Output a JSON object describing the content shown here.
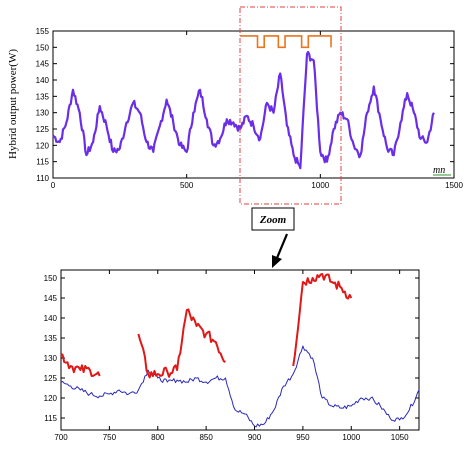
{
  "chart_data": [
    {
      "type": "line",
      "ylabel": "Hybrid output power(W)",
      "x_unit": "mn",
      "xlim": [
        0,
        1500
      ],
      "ylim": [
        110,
        155
      ],
      "xticks": [
        0,
        500,
        1000,
        1500
      ],
      "yticks": [
        110,
        115,
        120,
        125,
        130,
        135,
        140,
        145,
        150,
        155
      ],
      "grid": false,
      "annotation": {
        "type": "zoom-region",
        "x_range": [
          700,
          1070
        ],
        "label": "Zoom"
      },
      "colors": {
        "power": "#6a2ee8",
        "switch_signal": "#e8761e",
        "zoom_box": "#e04040",
        "unit": "#2a9a2a"
      },
      "series": [
        {
          "color": "#6a2ee8",
          "x": [
            0,
            25,
            50,
            75,
            100,
            125,
            150,
            175,
            200,
            225,
            250,
            275,
            300,
            325,
            350,
            375,
            400,
            425,
            450,
            475,
            500,
            525,
            550,
            575,
            600,
            625,
            650,
            675,
            700,
            725,
            750,
            775,
            800,
            825,
            850,
            875,
            900,
            925,
            950,
            975,
            1000,
            1025,
            1050,
            1075,
            1100,
            1125,
            1150,
            1175,
            1200,
            1225,
            1250,
            1275,
            1300,
            1325,
            1350,
            1375,
            1400,
            1425
          ],
          "y": [
            123,
            121,
            127,
            137,
            130,
            117,
            121,
            132,
            126,
            118,
            119,
            127,
            133,
            130,
            121,
            118,
            126,
            134,
            127,
            120,
            118,
            130,
            137,
            128,
            120,
            122,
            128,
            127,
            125,
            129,
            126,
            122,
            133,
            130,
            142,
            126,
            117,
            113,
            148,
            146,
            118,
            115,
            125,
            130,
            128,
            120,
            117,
            130,
            138,
            128,
            119,
            117,
            127,
            136,
            130,
            122,
            121,
            130
          ]
        },
        {
          "color": "#e8761e",
          "type": "step",
          "x": [
            700,
            765,
            790,
            843,
            868,
            930,
            955,
            1040
          ],
          "y": [
            153.5,
            150,
            153.5,
            150,
            153.5,
            150,
            153.5,
            150
          ]
        }
      ]
    },
    {
      "type": "line",
      "xlim": [
        700,
        1070
      ],
      "ylim": [
        112,
        152
      ],
      "xticks": [
        700,
        750,
        800,
        850,
        900,
        950,
        1000,
        1050
      ],
      "yticks": [
        115,
        120,
        125,
        130,
        135,
        140,
        145,
        150
      ],
      "grid": false,
      "colors": {
        "active_segment": "#e01818",
        "inactive_segment": "#2a2ab8"
      },
      "series": [
        {
          "color": "#2a2ab8",
          "x": [
            700,
            710,
            720,
            730,
            740,
            750,
            760,
            770,
            780,
            790,
            800,
            810,
            820,
            830,
            840,
            850,
            860,
            870,
            880,
            890,
            900,
            910,
            920,
            930,
            940,
            950,
            960,
            970,
            980,
            990,
            1000,
            1010,
            1020,
            1030,
            1040,
            1050,
            1060,
            1070
          ],
          "y": [
            124,
            123,
            122,
            121,
            120.5,
            121,
            122,
            121,
            122,
            127,
            125,
            124,
            124.5,
            124,
            125,
            124,
            125,
            125,
            117,
            116,
            113,
            113.5,
            117,
            123,
            126,
            133,
            130,
            120,
            118,
            117.5,
            118,
            120,
            120,
            118,
            115,
            114.5,
            117,
            122
          ]
        },
        {
          "color": "#e01818",
          "x": [
            700,
            710,
            720,
            730,
            740,
            750,
            760,
            770,
            780,
            790,
            800,
            810,
            820,
            830,
            840,
            850,
            860,
            870,
            880,
            890,
            900,
            910,
            920,
            930,
            940,
            950,
            960,
            970,
            980,
            990,
            1000,
            1010,
            1020,
            1030,
            1040,
            1050,
            1060,
            1070
          ],
          "y": [
            131,
            128,
            127,
            127,
            125.5,
            null,
            null,
            null,
            136,
            126,
            126,
            126.5,
            127,
            142,
            138,
            136,
            134,
            129,
            null,
            null,
            null,
            null,
            null,
            null,
            128,
            149,
            150,
            151,
            149,
            147.5,
            145,
            null,
            null,
            null,
            null,
            null,
            null,
            null
          ]
        }
      ]
    }
  ]
}
